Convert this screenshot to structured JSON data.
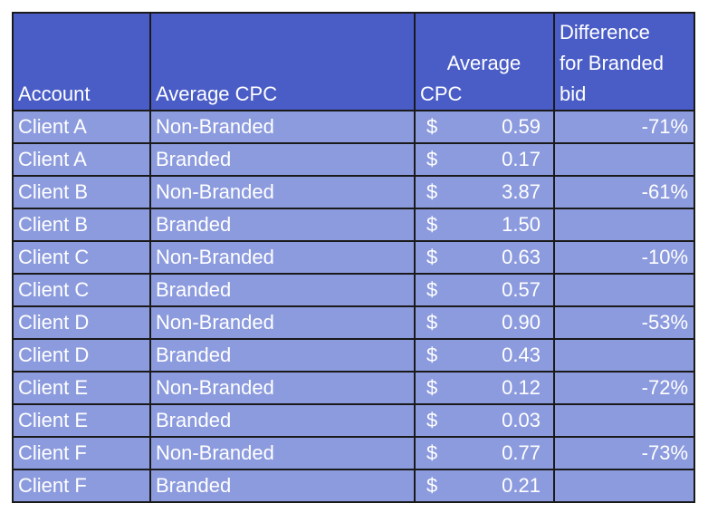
{
  "headers": {
    "account": "Account",
    "average_cpc_type": "Average CPC",
    "average_cpc_value": [
      "Average",
      "CPC"
    ],
    "difference": [
      "Difference",
      "for Branded",
      "bid"
    ]
  },
  "currency_symbol": "$",
  "rows": [
    {
      "account": "Client A",
      "type": "Non-Branded",
      "cpc": "0.59",
      "diff": "-71%"
    },
    {
      "account": "Client A",
      "type": "Branded",
      "cpc": "0.17",
      "diff": ""
    },
    {
      "account": "Client B",
      "type": "Non-Branded",
      "cpc": "3.87",
      "diff": "-61%"
    },
    {
      "account": "Client B",
      "type": "Branded",
      "cpc": "1.50",
      "diff": ""
    },
    {
      "account": "Client C",
      "type": "Non-Branded",
      "cpc": "0.63",
      "diff": "-10%"
    },
    {
      "account": "Client C",
      "type": "Branded",
      "cpc": "0.57",
      "diff": ""
    },
    {
      "account": "Client D",
      "type": "Non-Branded",
      "cpc": "0.90",
      "diff": "-53%"
    },
    {
      "account": "Client D",
      "type": "Branded",
      "cpc": "0.43",
      "diff": ""
    },
    {
      "account": "Client E",
      "type": "Non-Branded",
      "cpc": "0.12",
      "diff": "-72%"
    },
    {
      "account": "Client E",
      "type": "Branded",
      "cpc": "0.03",
      "diff": ""
    },
    {
      "account": "Client F",
      "type": "Non-Branded",
      "cpc": "0.77",
      "diff": "-73%"
    },
    {
      "account": "Client F",
      "type": "Branded",
      "cpc": "0.21",
      "diff": ""
    }
  ],
  "colors": {
    "header_background": "#4a5dc7",
    "row_background": "#8c9bde",
    "text": "#ffffff",
    "border": "#1a1a1a"
  }
}
